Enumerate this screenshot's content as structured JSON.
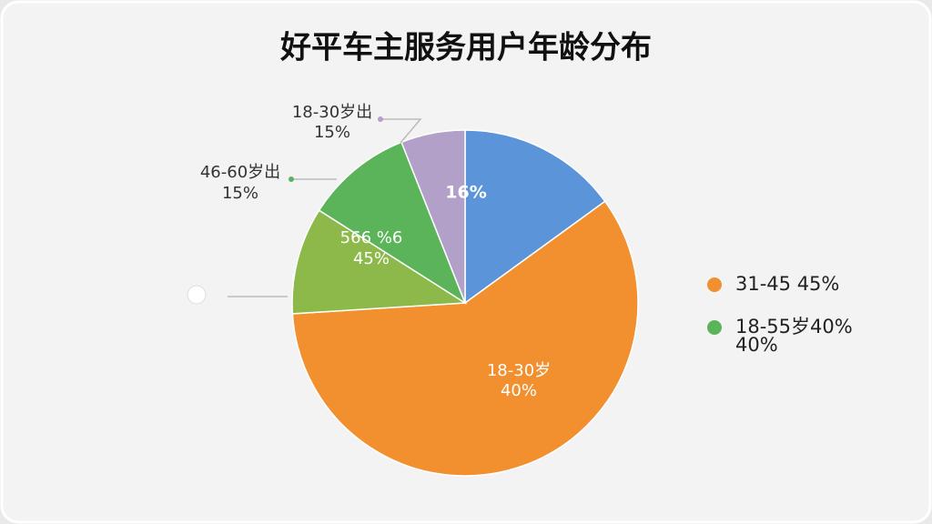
{
  "chart_data": {
    "type": "pie",
    "title": "好平车主服务用户年龄分布",
    "categories": [
      null,
      null,
      null,
      null,
      null
    ],
    "values": [
      15,
      59,
      10,
      10,
      6
    ],
    "colors": [
      "#5b94d9",
      "#f28f2e",
      "#8db84a",
      "#5cb45a",
      "#b3a0c9"
    ],
    "annotations": [
      "16%",
      "18-30岁",
      "40%",
      "566 %6",
      "45%",
      "18-30岁出",
      "15%",
      "46-60岁出",
      "15%"
    ],
    "legend": [
      {
        "label": "31-45 45%",
        "color": "#f28f2e"
      },
      {
        "label": "18-55岁40%",
        "sublabel": "40%",
        "color": "#5cb45a"
      }
    ]
  }
}
